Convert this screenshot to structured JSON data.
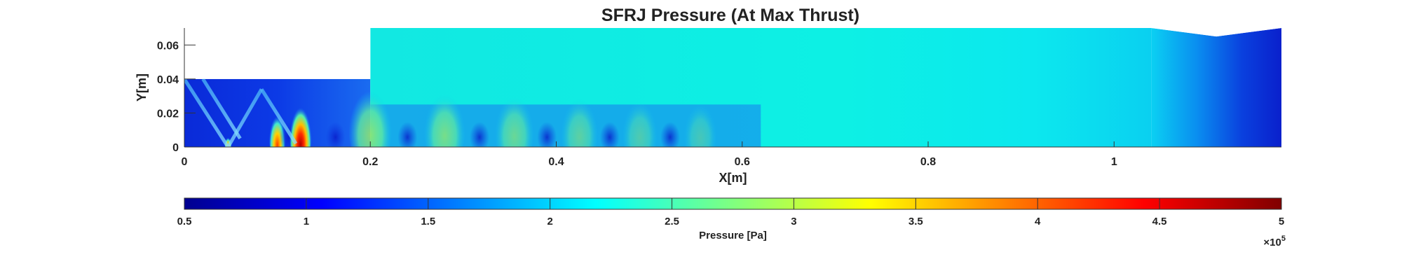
{
  "chart_data": {
    "type": "heatmap",
    "title": "SFRJ Pressure (At Max Thrust)",
    "xlabel": "X[m]",
    "ylabel": "Y[m]",
    "xlim": [
      0,
      1.18
    ],
    "ylim": [
      0,
      0.07
    ],
    "x_ticks": [
      0,
      0.2,
      0.4,
      0.6,
      0.8,
      1
    ],
    "x_tick_labels": [
      "0",
      "0.2",
      "0.4",
      "0.6",
      "0.8",
      "1"
    ],
    "y_ticks": [
      0,
      0.02,
      0.04,
      0.06
    ],
    "y_tick_labels": [
      "0",
      "0.02",
      "0.04",
      "0.06"
    ],
    "geometry": {
      "inlet_end_x": 0.2,
      "inlet_height_y": 0.04,
      "chamber_height_y": 0.07,
      "nozzle_start_x": 1.04,
      "throat_x": 1.11,
      "throat_height_y": 0.065,
      "exit_x": 1.18,
      "exit_height_y": 0.07
    },
    "colorbar": {
      "label": "Pressure [Pa]",
      "min": 0.5,
      "max": 5,
      "ticks": [
        0.5,
        1,
        1.5,
        2,
        2.5,
        3,
        3.5,
        4,
        4.5,
        5
      ],
      "tick_labels": [
        "0.5",
        "1",
        "1.5",
        "2",
        "2.5",
        "3",
        "3.5",
        "4",
        "4.5",
        "5"
      ],
      "multiplier_base": "×10",
      "multiplier_exp": "5",
      "colormap": "jet",
      "placement": "bottom"
    },
    "field_features": {
      "chamber_pressure_bar": 2.2,
      "shock_cells_x": [
        0.1,
        0.125,
        0.2,
        0.28,
        0.355,
        0.425,
        0.49,
        0.555
      ],
      "shock_cell_peak_pressure_bar": [
        3.9,
        4.6,
        3.0,
        2.8,
        2.7,
        2.6,
        2.5,
        2.4
      ],
      "exit_pressure_bar": 1.0
    }
  }
}
